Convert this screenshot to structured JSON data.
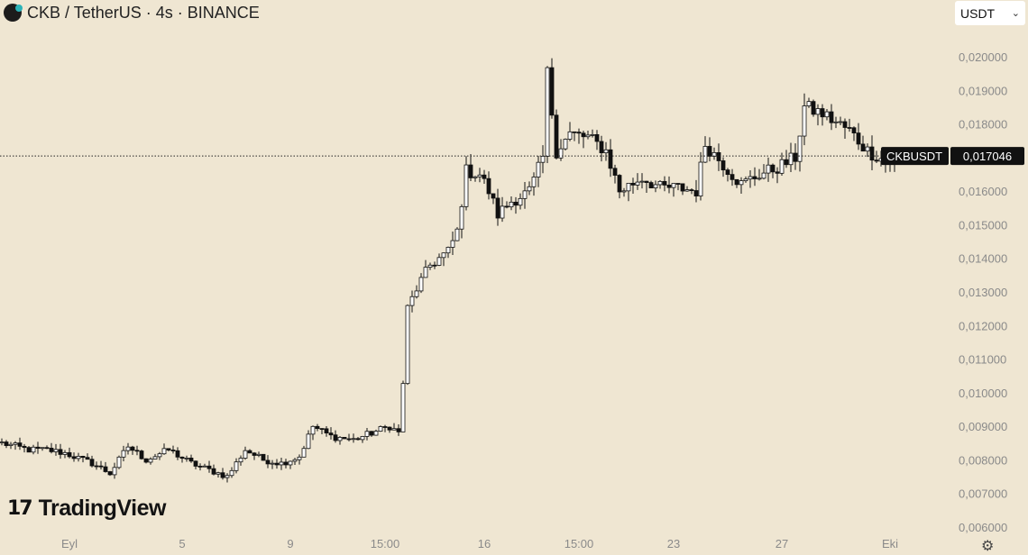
{
  "header": {
    "symbol_title": "CKB / TetherUS · 4s · BINANCE",
    "logo_icon": "ckb-coin-icon",
    "currency_select": "USDT"
  },
  "branding": {
    "name": "TradingView",
    "icon": "tradingview-logo-icon"
  },
  "settings_icon": "gear-icon",
  "chart_data": {
    "type": "candlestick",
    "symbol": "CKBUSDT",
    "current_price": 0.017046,
    "last_price_label": "0,017046",
    "price_label_name": "CKBUSDT",
    "ylim": [
      0.006,
      0.0203
    ],
    "y_ticks": [
      0.02,
      0.019,
      0.018,
      0.017,
      0.016,
      0.015,
      0.014,
      0.013,
      0.012,
      0.011,
      0.01,
      0.009,
      0.008,
      0.007,
      0.006
    ],
    "y_tick_labels": [
      "0,020000",
      "0,019000",
      "0,018000",
      "",
      "0,016000",
      "0,015000",
      "0,014000",
      "0,013000",
      "0,012000",
      "0,011000",
      "0,010000",
      "0,009000",
      "0,008000",
      "0,007000",
      "0,006000"
    ],
    "x_ticks": [
      {
        "label": "Eyl",
        "index": 15
      },
      {
        "label": "5",
        "index": 40
      },
      {
        "label": "9",
        "index": 64
      },
      {
        "label": "15:00",
        "index": 85
      },
      {
        "label": "16",
        "index": 107
      },
      {
        "label": "15:00",
        "index": 128
      },
      {
        "label": "23",
        "index": 149
      },
      {
        "label": "27",
        "index": 173
      },
      {
        "label": "Eki",
        "index": 197
      }
    ],
    "grid": false,
    "path_close": [
      [
        0,
        0.0085
      ],
      [
        6,
        0.0083
      ],
      [
        10,
        0.0083
      ],
      [
        14,
        0.0082
      ],
      [
        20,
        0.0079
      ],
      [
        24,
        0.0076
      ],
      [
        28,
        0.0084
      ],
      [
        32,
        0.008
      ],
      [
        37,
        0.0083
      ],
      [
        42,
        0.0079
      ],
      [
        46,
        0.0077
      ],
      [
        50,
        0.0075
      ],
      [
        54,
        0.0083
      ],
      [
        58,
        0.008
      ],
      [
        62,
        0.0079
      ],
      [
        66,
        0.0081
      ],
      [
        69,
        0.009
      ],
      [
        73,
        0.0087
      ],
      [
        78,
        0.0086
      ],
      [
        82,
        0.0088
      ],
      [
        86,
        0.009
      ],
      [
        88,
        0.0088
      ],
      [
        89,
        0.0103
      ],
      [
        90,
        0.0125
      ],
      [
        92,
        0.0131
      ],
      [
        95,
        0.0138
      ],
      [
        99,
        0.0142
      ],
      [
        101,
        0.0148
      ],
      [
        103,
        0.0166
      ],
      [
        106,
        0.0165
      ],
      [
        108,
        0.016
      ],
      [
        110,
        0.0153
      ],
      [
        113,
        0.0157
      ],
      [
        117,
        0.016
      ],
      [
        118,
        0.0163
      ],
      [
        120,
        0.017
      ],
      [
        121,
        0.0195
      ],
      [
        123,
        0.0172
      ],
      [
        126,
        0.0177
      ],
      [
        130,
        0.0176
      ],
      [
        134,
        0.0172
      ],
      [
        137,
        0.016
      ],
      [
        142,
        0.0164
      ],
      [
        146,
        0.0161
      ],
      [
        150,
        0.0161
      ],
      [
        154,
        0.016
      ],
      [
        156,
        0.0174
      ],
      [
        160,
        0.0168
      ],
      [
        164,
        0.0162
      ],
      [
        168,
        0.0165
      ],
      [
        172,
        0.0167
      ],
      [
        176,
        0.017
      ],
      [
        178,
        0.0185
      ],
      [
        182,
        0.0183
      ],
      [
        188,
        0.0178
      ],
      [
        192,
        0.0172
      ],
      [
        196,
        0.0169
      ],
      [
        198,
        0.017
      ]
    ]
  }
}
